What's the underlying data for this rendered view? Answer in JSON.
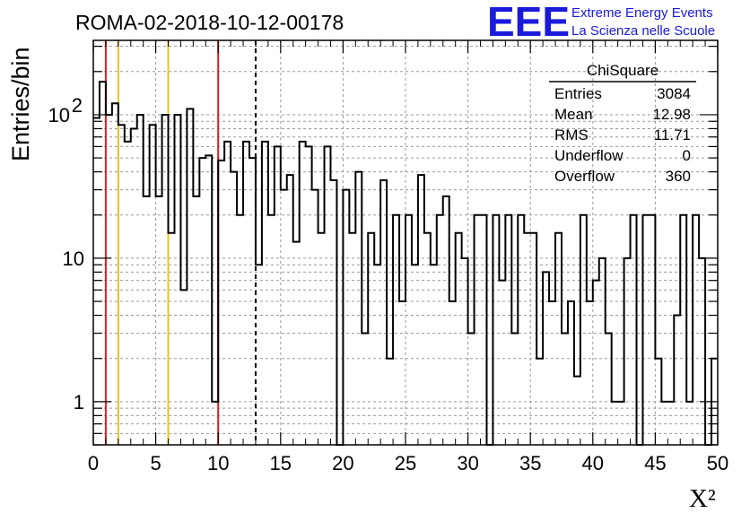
{
  "title": "ROMA-02-2018-10-12-00178",
  "logo": {
    "mark": "EEE",
    "line1": "Extreme Energy Events",
    "line2": "La Scienza nelle Scuole",
    "color": "#1a1adc"
  },
  "stats": {
    "name": "ChiSquare",
    "rows": [
      {
        "label": "Entries",
        "value": "3084"
      },
      {
        "label": "Mean",
        "value": "12.98"
      },
      {
        "label": "RMS",
        "value": "11.71"
      },
      {
        "label": "Underflow",
        "value": "0"
      },
      {
        "label": "Overflow",
        "value": "360"
      }
    ]
  },
  "chart_data": {
    "type": "histogram",
    "title": "ROMA-02-2018-10-12-00178",
    "xlabel": "X²",
    "ylabel": "Entries/bin",
    "xlim": [
      0,
      50
    ],
    "ylim": [
      0.5,
      330
    ],
    "yscale": "log",
    "grid": true,
    "bin_width": 0.5,
    "x_ticks": [
      0,
      5,
      10,
      15,
      20,
      25,
      30,
      35,
      40,
      45,
      50
    ],
    "y_ticks": [
      {
        "value": 1,
        "label": "1"
      },
      {
        "value": 10,
        "label": "10"
      },
      {
        "value": 100,
        "label": "10",
        "sup": "2"
      }
    ],
    "values": [
      95,
      170,
      100,
      120,
      85,
      65,
      80,
      100,
      27,
      85,
      27,
      100,
      15,
      100,
      6,
      110,
      27,
      50,
      52,
      1,
      48,
      65,
      40,
      20,
      65,
      50,
      9,
      65,
      20,
      60,
      30,
      38,
      13,
      65,
      60,
      30,
      15,
      60,
      35,
      0,
      30,
      15,
      40,
      3,
      15,
      9,
      35,
      2,
      20,
      5,
      20,
      9,
      38,
      15,
      9,
      20,
      27,
      5,
      15,
      10,
      3,
      20,
      20,
      0,
      20,
      7,
      20,
      3,
      20,
      15,
      15,
      2,
      8,
      5,
      15,
      3,
      5,
      1.5,
      20,
      5,
      7,
      10,
      3,
      1,
      1,
      10,
      20,
      0,
      20,
      20,
      2,
      1,
      1,
      4,
      20,
      1,
      20,
      10,
      0,
      2
    ],
    "markers": [
      {
        "x": 1,
        "color": "#d92020",
        "style": "solid"
      },
      {
        "x": 2,
        "color": "#f0c020",
        "style": "solid"
      },
      {
        "x": 6,
        "color": "#f0c020",
        "style": "solid"
      },
      {
        "x": 10,
        "color": "#d92020",
        "style": "solid"
      },
      {
        "x": 13,
        "color": "#000000",
        "style": "dashed"
      }
    ]
  }
}
